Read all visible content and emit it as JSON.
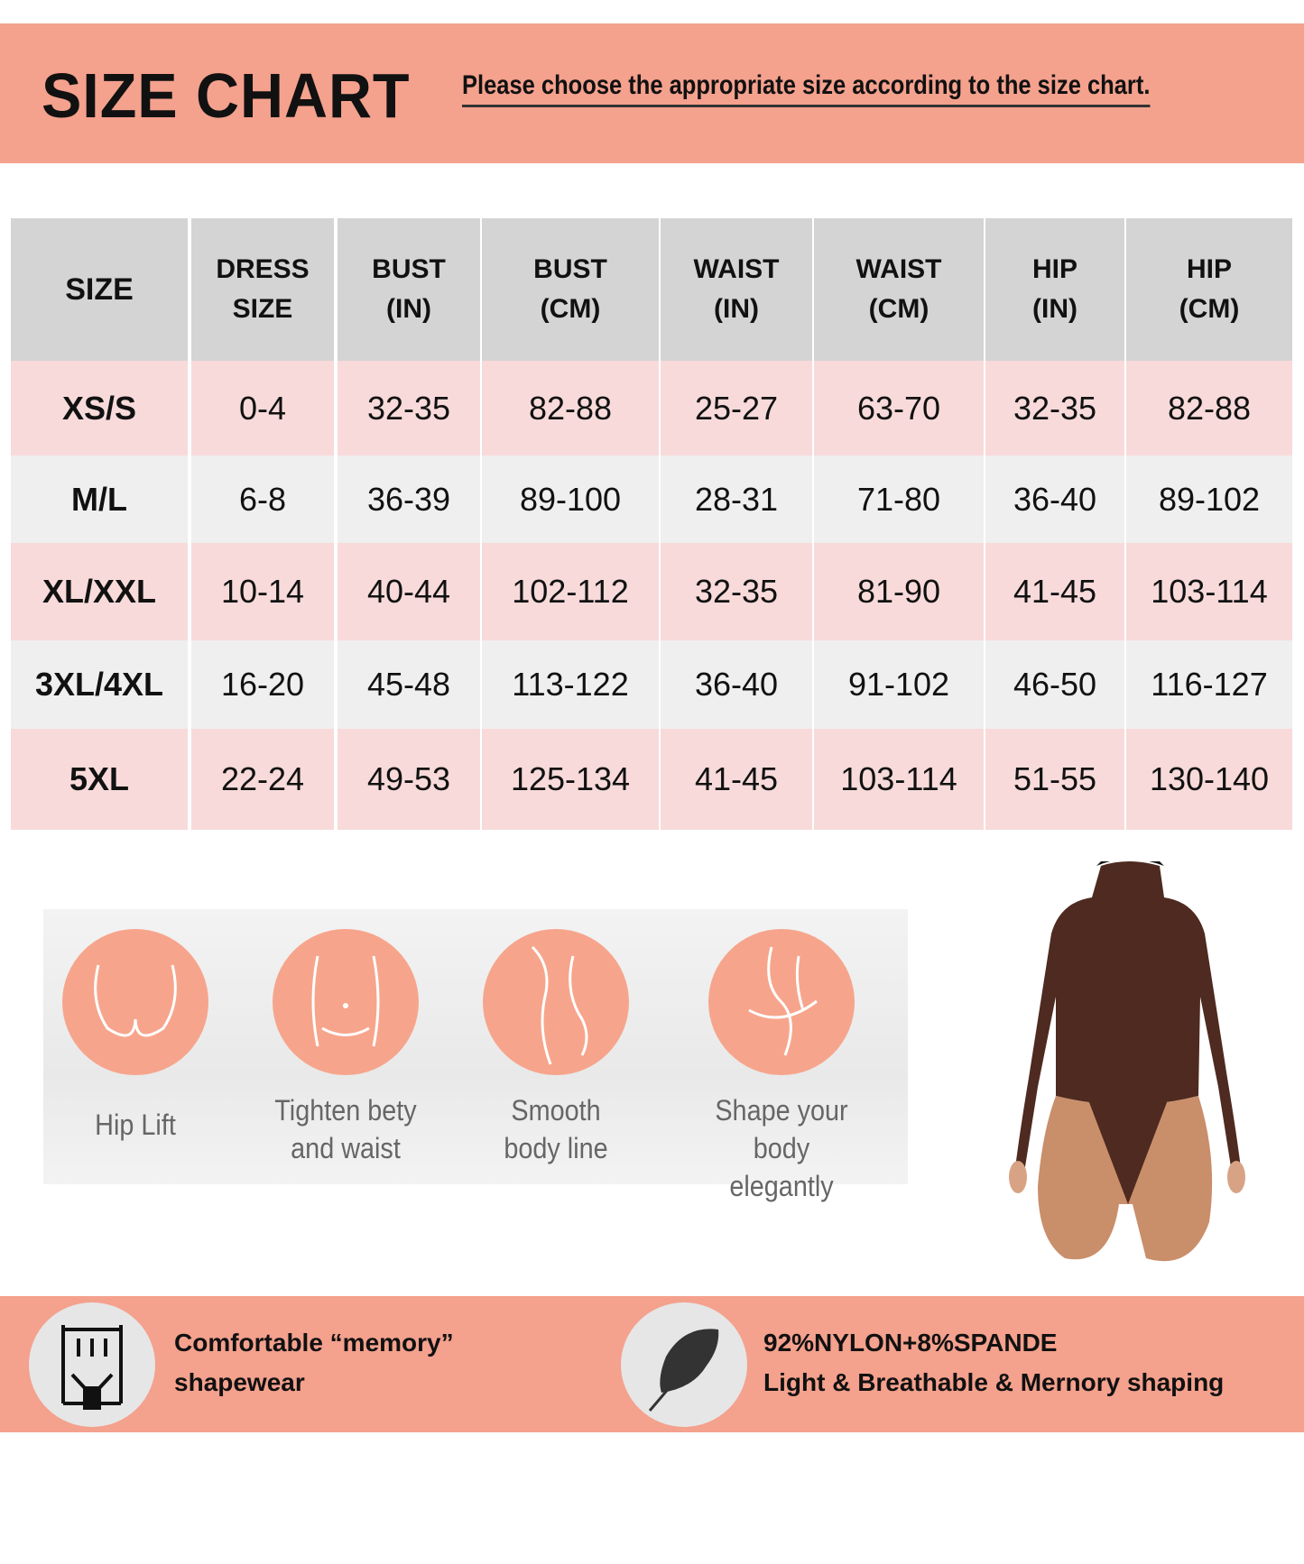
{
  "header": {
    "title": "SIZE CHART",
    "subtitle": "Please choose the appropriate size according to the size chart."
  },
  "colors": {
    "band": "#f4a18d",
    "header_row": "#d4d4d4",
    "row_pink": "#f8dada",
    "row_light": "#efefef",
    "circle": "#f6a58c",
    "garment": "#4e2a20"
  },
  "table": {
    "headers": [
      [
        "SIZE",
        ""
      ],
      [
        "DRESS",
        "SIZE"
      ],
      [
        "BUST",
        "(IN)"
      ],
      [
        "BUST",
        "(CM)"
      ],
      [
        "WAIST",
        "(IN)"
      ],
      [
        "WAIST",
        "(CM)"
      ],
      [
        "HIP",
        "(IN)"
      ],
      [
        "HIP",
        "(CM)"
      ]
    ],
    "rows": [
      [
        "XS/S",
        "0-4",
        "32-35",
        "82-88",
        "25-27",
        "63-70",
        "32-35",
        "82-88"
      ],
      [
        "M/L",
        "6-8",
        "36-39",
        "89-100",
        "28-31",
        "71-80",
        "36-40",
        "89-102"
      ],
      [
        "XL/XXL",
        "10-14",
        "40-44",
        "102-112",
        "32-35",
        "81-90",
        "41-45",
        "103-114"
      ],
      [
        "3XL/4XL",
        "16-20",
        "45-48",
        "113-122",
        "36-40",
        "91-102",
        "46-50",
        "116-127"
      ],
      [
        "5XL",
        "22-24",
        "49-53",
        "125-134",
        "41-45",
        "103-114",
        "51-55",
        "130-140"
      ]
    ]
  },
  "features": [
    {
      "label1": "Hip Lift",
      "label2": "",
      "icon": "hip-icon"
    },
    {
      "label1": "Tighten bety",
      "label2": "and waist",
      "icon": "belly-icon"
    },
    {
      "label1": "Smooth",
      "label2": "body line",
      "icon": "body-line-icon"
    },
    {
      "label1": "Shape your",
      "label2": "body elegantly",
      "icon": "body-shape-icon"
    }
  ],
  "bottom": {
    "left": {
      "line1": "Comfortable “memory”",
      "line2": "shapewear",
      "icon": "shapewear-icon"
    },
    "right": {
      "line1": "92%NYLON+8%SPANDE",
      "line2": "Light & Breathable & Mernory shaping",
      "icon": "feather-icon"
    }
  }
}
